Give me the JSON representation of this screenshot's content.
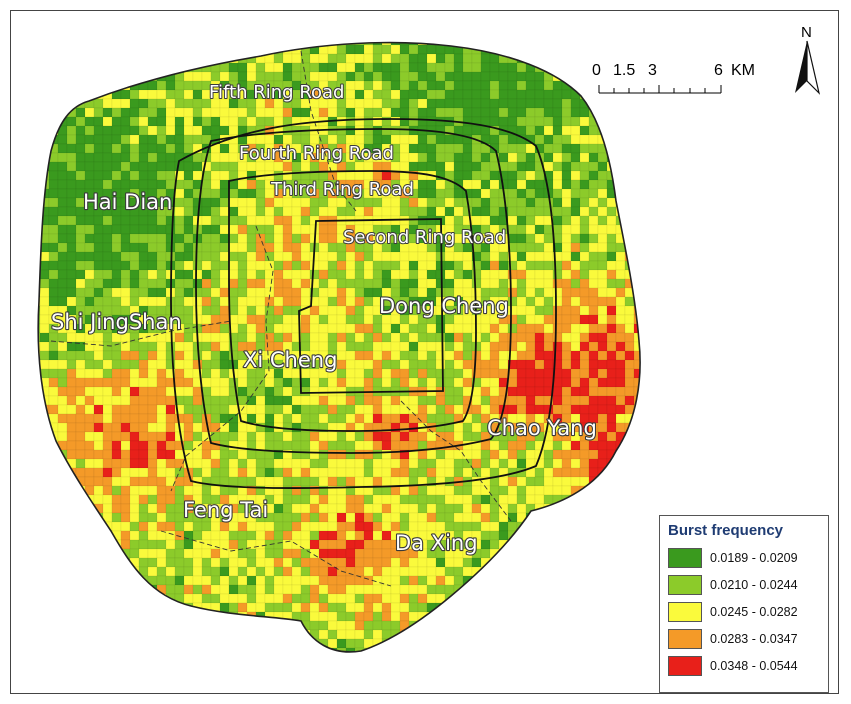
{
  "map": {
    "districts": {
      "hai_dian": "Hai Dian",
      "shi_jingshan": "Shi JingShan",
      "xi_cheng": "Xi Cheng",
      "dong_cheng": "Dong Cheng",
      "chao_yang": "Chao Yang",
      "feng_tai": "Feng Tai",
      "da_xing": "Da Xing"
    },
    "ring_roads": {
      "fifth": "Fifth Ring Road",
      "fourth": "Fourth Ring Road",
      "third": "Third Ring Road",
      "second": "Second Ring Road"
    },
    "scale_bar": {
      "tick_labels": [
        "0",
        "1.5",
        "3",
        "6"
      ],
      "unit": "KM"
    },
    "north_arrow": {
      "label": "N",
      "icon": "north-arrow-icon"
    },
    "legend": {
      "title": "Burst frequency",
      "classes": [
        {
          "label": "0.0189 - 0.0209",
          "color": "#3a9a1e"
        },
        {
          "label": "0.0210 - 0.0244",
          "color": "#8ccb2a"
        },
        {
          "label": "0.0245 - 0.0282",
          "color": "#fafa3c"
        },
        {
          "label": "0.0283 - 0.0347",
          "color": "#f49a28"
        },
        {
          "label": "0.0348 - 0.0544",
          "color": "#e8201a"
        }
      ]
    }
  }
}
